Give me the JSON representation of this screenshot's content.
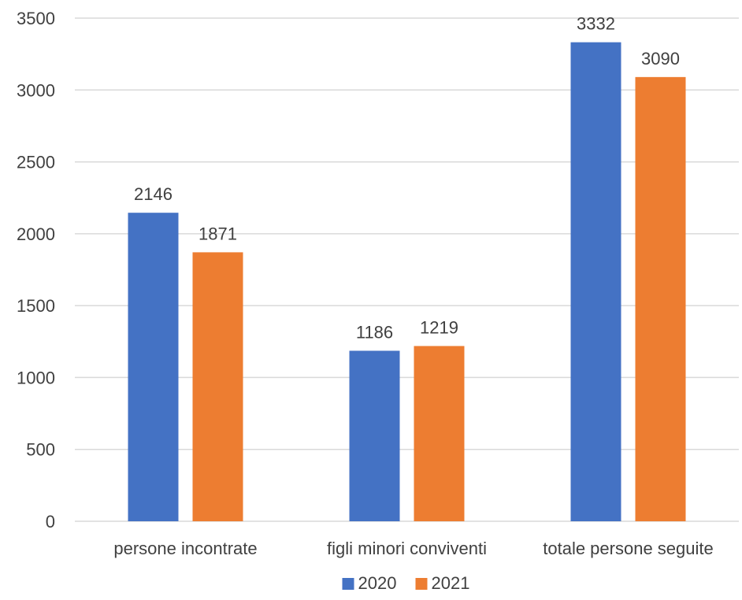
{
  "chart_data": {
    "type": "bar",
    "categories": [
      "persone incontrate",
      "figli minori conviventi",
      "totale persone seguite"
    ],
    "series": [
      {
        "name": "2020",
        "values": [
          2146,
          1186,
          3332
        ],
        "color": "#4472C4"
      },
      {
        "name": "2021",
        "values": [
          1871,
          1219,
          3090
        ],
        "color": "#ED7D31"
      }
    ],
    "title": "",
    "xlabel": "",
    "ylabel": "",
    "ylim": [
      0,
      3500
    ],
    "yticks": [
      0,
      500,
      1000,
      1500,
      2000,
      2500,
      3000,
      3500
    ],
    "grid": true,
    "legend": "bottom",
    "data_labels": true
  }
}
